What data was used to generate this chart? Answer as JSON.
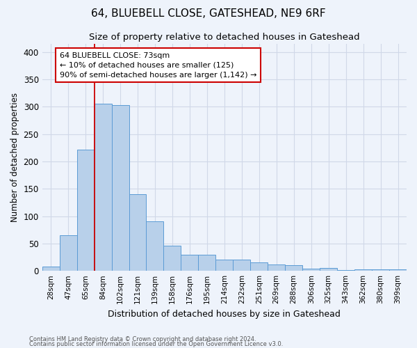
{
  "title1": "64, BLUEBELL CLOSE, GATESHEAD, NE9 6RF",
  "title2": "Size of property relative to detached houses in Gateshead",
  "xlabel": "Distribution of detached houses by size in Gateshead",
  "ylabel": "Number of detached properties",
  "footer1": "Contains HM Land Registry data © Crown copyright and database right 2024.",
  "footer2": "Contains public sector information licensed under the Open Government Licence v3.0.",
  "bar_labels": [
    "28sqm",
    "47sqm",
    "65sqm",
    "84sqm",
    "102sqm",
    "121sqm",
    "139sqm",
    "158sqm",
    "176sqm",
    "195sqm",
    "214sqm",
    "232sqm",
    "251sqm",
    "269sqm",
    "288sqm",
    "306sqm",
    "325sqm",
    "343sqm",
    "362sqm",
    "380sqm",
    "399sqm"
  ],
  "bar_values": [
    8,
    65,
    222,
    305,
    303,
    140,
    90,
    46,
    30,
    30,
    20,
    20,
    15,
    12,
    10,
    4,
    5,
    2,
    3,
    3,
    3
  ],
  "bar_color": "#b8d0ea",
  "bar_edge_color": "#5b9bd5",
  "background_color": "#eef3fb",
  "grid_color": "#d0d8e8",
  "vline_color": "#cc0000",
  "vline_x_index": 2.5,
  "annotation_text": "64 BLUEBELL CLOSE: 73sqm\n← 10% of detached houses are smaller (125)\n90% of semi-detached houses are larger (1,142) →",
  "annotation_box_color": "#ffffff",
  "annotation_box_edge": "#cc0000",
  "ylim_max": 415,
  "yticks": [
    0,
    50,
    100,
    150,
    200,
    250,
    300,
    350,
    400
  ]
}
